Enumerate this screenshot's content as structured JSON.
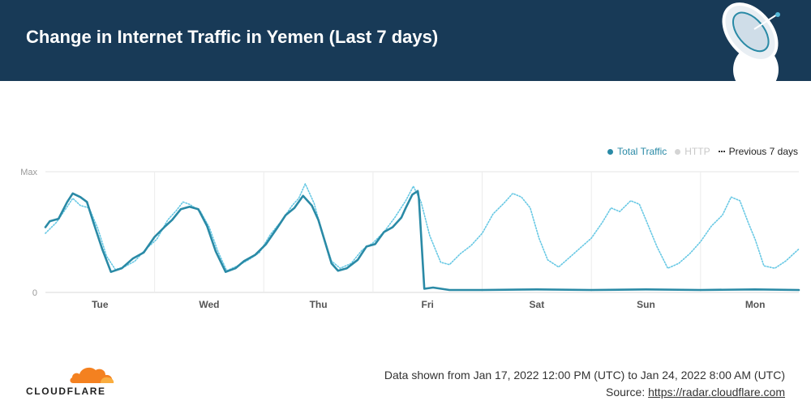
{
  "header": {
    "title": "Change in Internet Traffic in Yemen (Last 7 days)"
  },
  "legend": {
    "items": [
      {
        "label": "Total Traffic",
        "color": "#2a8aa6"
      },
      {
        "label": "HTTP",
        "color": "#d4d4d4"
      },
      {
        "label": "Previous 7 days",
        "color": "#333333"
      }
    ]
  },
  "footer": {
    "logo_text": "CLOUDFLARE",
    "data_range": "Data shown from Jan 17, 2022 12:00 PM (UTC) to Jan 24, 2022 8:00 AM (UTC)",
    "source_label": "Source:",
    "source_link": "https://radar.cloudflare.com"
  },
  "chart_data": {
    "type": "line",
    "y_tick_labels": [
      "Max",
      "0"
    ],
    "ylim": [
      0,
      100
    ],
    "x_tick_labels": [
      "Tue",
      "Wed",
      "Thu",
      "Fri",
      "Sat",
      "Sun",
      "Mon"
    ],
    "x_tick_positions": [
      0.5,
      1.5,
      2.5,
      3.5,
      4.5,
      5.5,
      6.5
    ],
    "xlim": [
      0,
      6.9
    ],
    "grid": true,
    "legend_position": "top-right",
    "series": [
      {
        "name": "Total Traffic",
        "color": "#2a8aa6",
        "style": "solid",
        "points": [
          [
            0,
            54
          ],
          [
            0.04,
            59
          ],
          [
            0.12,
            61
          ],
          [
            0.2,
            75
          ],
          [
            0.25,
            82
          ],
          [
            0.32,
            79
          ],
          [
            0.38,
            75
          ],
          [
            0.44,
            58
          ],
          [
            0.52,
            36
          ],
          [
            0.6,
            17
          ],
          [
            0.7,
            20
          ],
          [
            0.8,
            28
          ],
          [
            0.9,
            33
          ],
          [
            1.0,
            46
          ],
          [
            1.1,
            55
          ],
          [
            1.16,
            60
          ],
          [
            1.24,
            69
          ],
          [
            1.32,
            71
          ],
          [
            1.4,
            69
          ],
          [
            1.48,
            55
          ],
          [
            1.56,
            34
          ],
          [
            1.65,
            17
          ],
          [
            1.74,
            20
          ],
          [
            1.82,
            26
          ],
          [
            1.92,
            31
          ],
          [
            2.02,
            40
          ],
          [
            2.12,
            53
          ],
          [
            2.2,
            64
          ],
          [
            2.28,
            70
          ],
          [
            2.36,
            80
          ],
          [
            2.44,
            72
          ],
          [
            2.5,
            60
          ],
          [
            2.56,
            42
          ],
          [
            2.62,
            24
          ],
          [
            2.68,
            18
          ],
          [
            2.76,
            20
          ],
          [
            2.86,
            27
          ],
          [
            2.94,
            38
          ],
          [
            3.02,
            40
          ],
          [
            3.1,
            50
          ],
          [
            3.18,
            54
          ],
          [
            3.26,
            62
          ],
          [
            3.3,
            70
          ],
          [
            3.36,
            81
          ],
          [
            3.41,
            84
          ],
          [
            3.42,
            78
          ],
          [
            3.47,
            3
          ],
          [
            3.55,
            4
          ],
          [
            3.7,
            2
          ],
          [
            4.0,
            2
          ],
          [
            4.5,
            2.5
          ],
          [
            5.0,
            2
          ],
          [
            5.5,
            2.5
          ],
          [
            6.0,
            2
          ],
          [
            6.5,
            2.5
          ],
          [
            6.9,
            2
          ]
        ]
      },
      {
        "name": "Previous 7 days",
        "color": "#67c8e4",
        "style": "dotted",
        "points": [
          [
            0,
            49
          ],
          [
            0.1,
            58
          ],
          [
            0.2,
            71
          ],
          [
            0.25,
            78
          ],
          [
            0.32,
            72
          ],
          [
            0.4,
            70
          ],
          [
            0.48,
            53
          ],
          [
            0.56,
            30
          ],
          [
            0.64,
            19
          ],
          [
            0.72,
            21
          ],
          [
            0.82,
            26
          ],
          [
            0.92,
            36
          ],
          [
            1.02,
            44
          ],
          [
            1.12,
            60
          ],
          [
            1.2,
            68
          ],
          [
            1.26,
            75
          ],
          [
            1.32,
            73
          ],
          [
            1.42,
            67
          ],
          [
            1.5,
            54
          ],
          [
            1.58,
            34
          ],
          [
            1.66,
            18
          ],
          [
            1.76,
            22
          ],
          [
            1.86,
            27
          ],
          [
            1.96,
            33
          ],
          [
            2.06,
            48
          ],
          [
            2.16,
            59
          ],
          [
            2.26,
            72
          ],
          [
            2.32,
            78
          ],
          [
            2.38,
            90
          ],
          [
            2.46,
            74
          ],
          [
            2.54,
            48
          ],
          [
            2.62,
            26
          ],
          [
            2.7,
            20
          ],
          [
            2.8,
            24
          ],
          [
            2.9,
            35
          ],
          [
            3.0,
            41
          ],
          [
            3.1,
            50
          ],
          [
            3.2,
            62
          ],
          [
            3.3,
            76
          ],
          [
            3.37,
            88
          ],
          [
            3.44,
            75
          ],
          [
            3.52,
            47
          ],
          [
            3.62,
            25
          ],
          [
            3.7,
            23
          ],
          [
            3.8,
            32
          ],
          [
            3.9,
            39
          ],
          [
            4.0,
            49
          ],
          [
            4.1,
            65
          ],
          [
            4.2,
            74
          ],
          [
            4.28,
            82
          ],
          [
            4.36,
            79
          ],
          [
            4.44,
            70
          ],
          [
            4.52,
            45
          ],
          [
            4.6,
            27
          ],
          [
            4.7,
            21
          ],
          [
            4.8,
            29
          ],
          [
            4.9,
            37
          ],
          [
            5.0,
            45
          ],
          [
            5.1,
            58
          ],
          [
            5.18,
            70
          ],
          [
            5.26,
            67
          ],
          [
            5.36,
            76
          ],
          [
            5.44,
            73
          ],
          [
            5.5,
            60
          ],
          [
            5.6,
            38
          ],
          [
            5.7,
            20
          ],
          [
            5.8,
            24
          ],
          [
            5.9,
            32
          ],
          [
            6.0,
            42
          ],
          [
            6.1,
            55
          ],
          [
            6.2,
            64
          ],
          [
            6.28,
            79
          ],
          [
            6.36,
            76
          ],
          [
            6.44,
            57
          ],
          [
            6.5,
            44
          ],
          [
            6.58,
            22
          ],
          [
            6.68,
            20
          ],
          [
            6.78,
            26
          ],
          [
            6.9,
            36
          ]
        ]
      }
    ]
  }
}
